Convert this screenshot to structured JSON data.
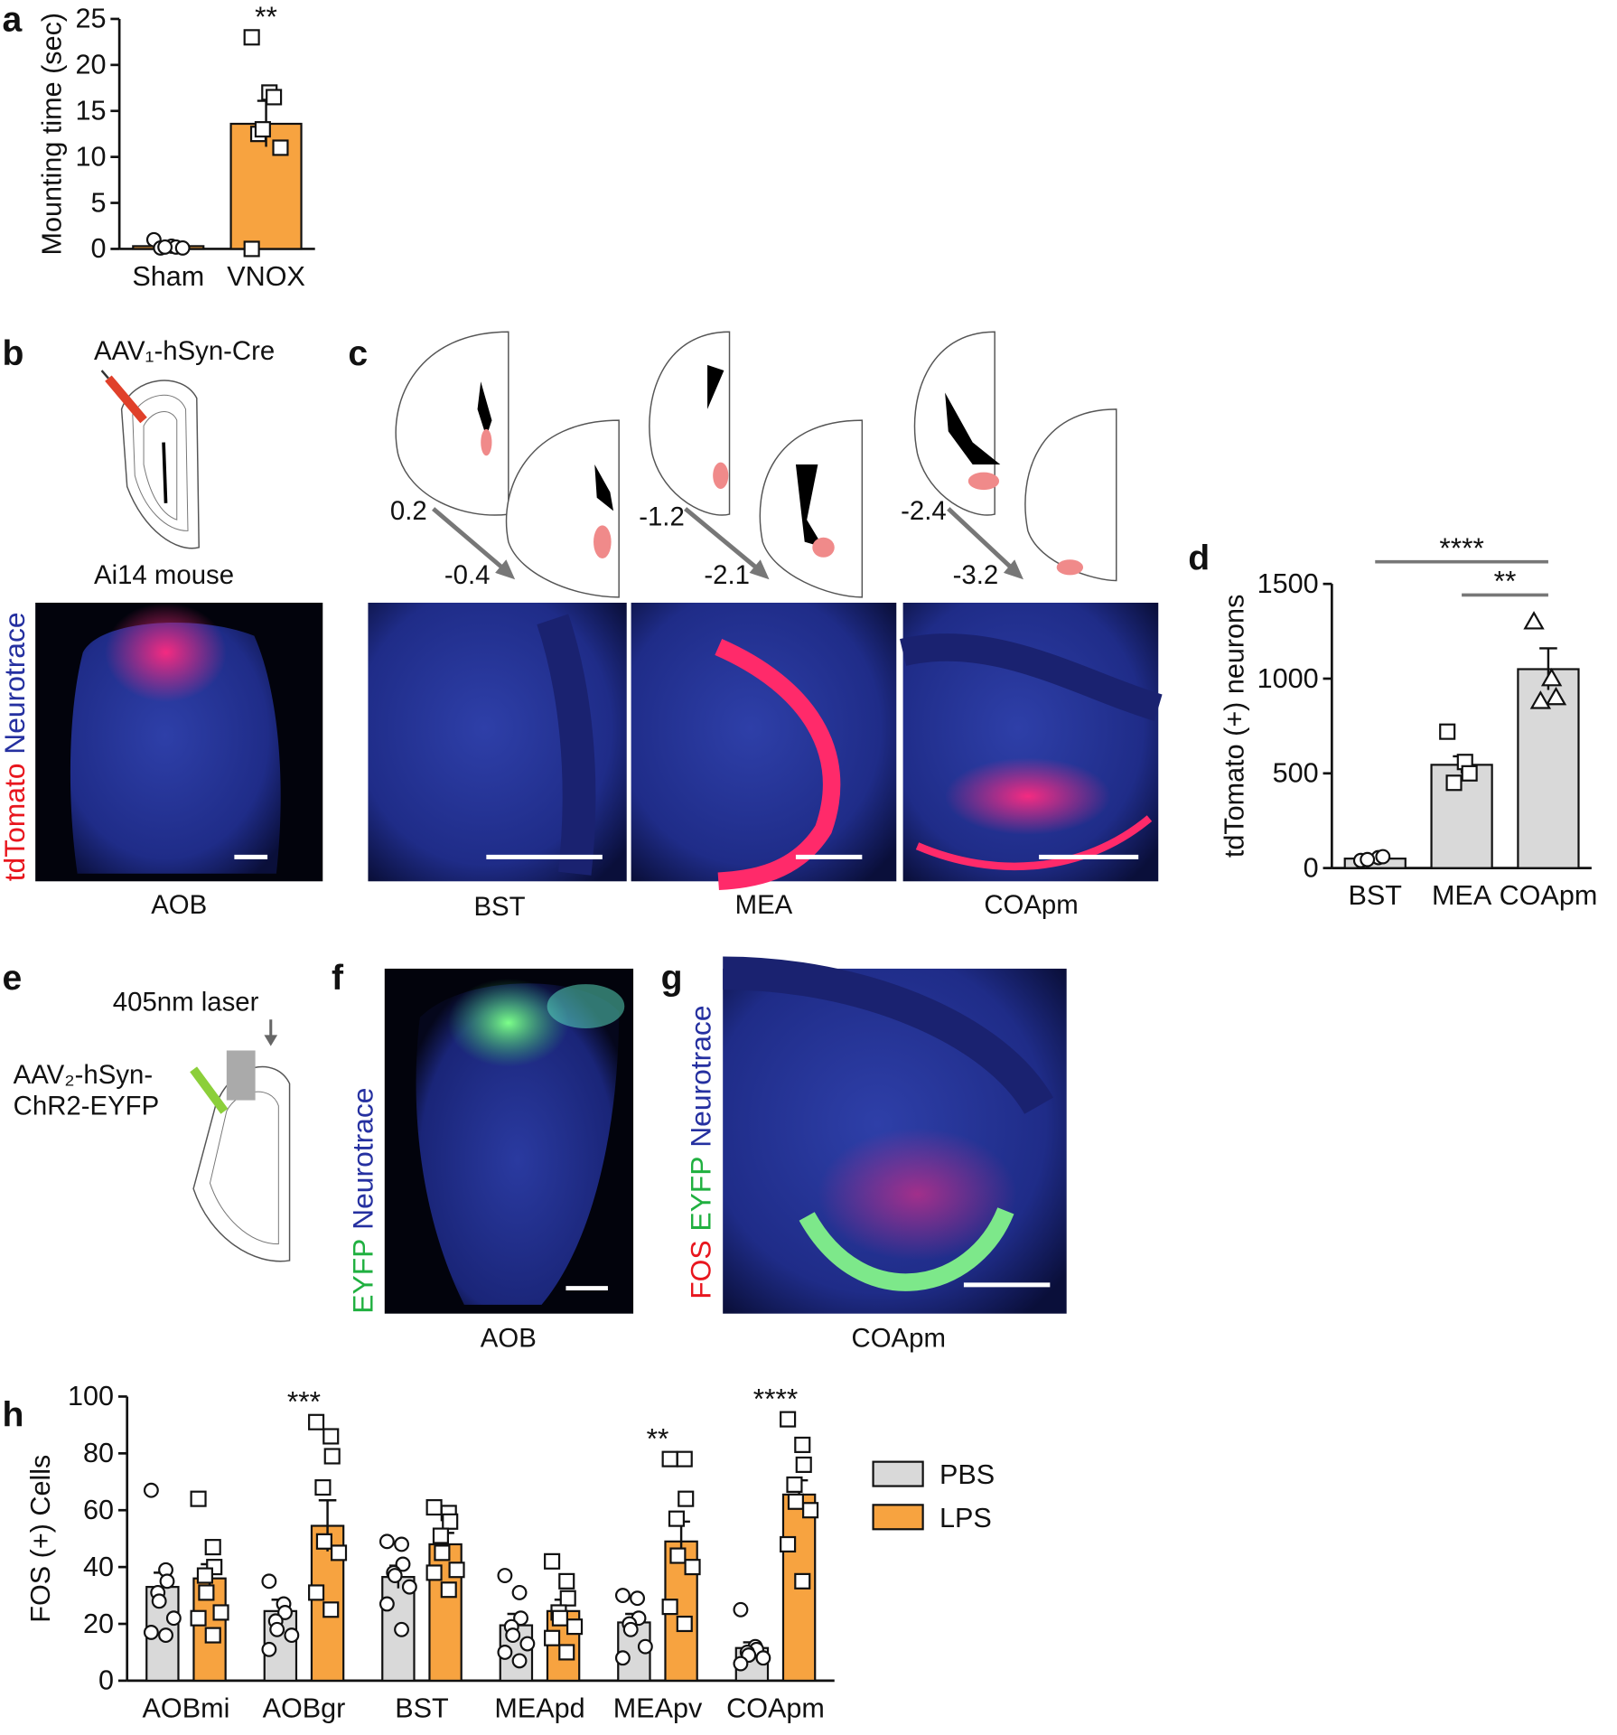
{
  "panels": [
    "a",
    "b",
    "c",
    "d",
    "e",
    "f",
    "g",
    "h"
  ],
  "b": {
    "vector": "AAV₁-hSyn-Cre",
    "mouse": "Ai14 mouse",
    "stain": [
      "tdTomato",
      "Neurotrace"
    ],
    "region": "AOB"
  },
  "c": {
    "levels": [
      [
        "0.2",
        "-0.4"
      ],
      [
        "-1.2",
        "-2.1"
      ],
      [
        "-2.4",
        "-3.2"
      ]
    ],
    "regions": [
      "BST",
      "MEA",
      "COApm"
    ]
  },
  "e": {
    "laser": "405nm laser",
    "vector": [
      "AAV₂-hSyn-",
      "ChR2-EYFP"
    ]
  },
  "f": {
    "stain": [
      "EYFP",
      "Neurotrace"
    ],
    "region": "AOB"
  },
  "g": {
    "stain": [
      "FOS",
      "EYFP",
      "Neurotrace"
    ],
    "region": "COApm"
  },
  "chart_data": [
    {
      "type": "bar",
      "y_label": "Mounting time (sec)",
      "categories": [
        "Sham",
        "VNOX"
      ],
      "values": [
        0.3,
        13.6
      ],
      "errors": [
        0.2,
        2.5
      ],
      "points": [
        [
          1,
          0.3,
          0.2,
          0.1,
          0.2,
          0.1
        ],
        [
          23,
          17,
          16.5,
          12.5,
          13,
          11,
          0
        ]
      ],
      "markers": [
        "circle",
        "square"
      ],
      "color": "#f7a340",
      "ylim": [
        0,
        25
      ],
      "yticks": [
        0,
        5,
        10,
        15,
        20,
        25
      ],
      "significance": [
        null,
        "**"
      ]
    },
    {
      "type": "bar",
      "y_label": "tdTomato (+) neurons",
      "categories": [
        "BST",
        "MEA",
        "COApm"
      ],
      "values": [
        50,
        545,
        1050
      ],
      "errors": [
        15,
        45,
        110
      ],
      "points": [
        [
          40,
          55,
          60,
          45
        ],
        [
          720,
          560,
          500,
          450
        ],
        [
          1300,
          1000,
          900,
          880
        ]
      ],
      "markers": [
        "circle",
        "square",
        "triangle"
      ],
      "color": "#d9d9d9",
      "ylim": [
        0,
        1500
      ],
      "yticks": [
        0,
        500,
        1000,
        1500
      ],
      "comparisons": [
        {
          "label": "****",
          "from": "BST",
          "to": "COApm"
        },
        {
          "label": "**",
          "from": "MEA",
          "to": "COApm"
        }
      ]
    },
    {
      "type": "grouped_bar",
      "y_label": "FOS (+) Cells",
      "categories": [
        "AOBmi",
        "AOBgr",
        "BST",
        "MEApd",
        "MEApv",
        "COApm"
      ],
      "series": [
        {
          "name": "PBS",
          "color": "#d9d9d9",
          "marker": "circle",
          "values": [
            33,
            24.5,
            36.5,
            19.5,
            20.5,
            11.5
          ],
          "errors": [
            5,
            4,
            4,
            4,
            3,
            2
          ],
          "points": [
            [
              67,
              39,
              35,
              31,
              28,
              22,
              17,
              16
            ],
            [
              35,
              27,
              24,
              21,
              18,
              16,
              11
            ],
            [
              49,
              48,
              41,
              38,
              37,
              33,
              27,
              18
            ],
            [
              37,
              31,
              22,
              19,
              16,
              13,
              10,
              7
            ],
            [
              30,
              29,
              22,
              20,
              18,
              12,
              8
            ],
            [
              25,
              12,
              11,
              10,
              9,
              8,
              6
            ]
          ]
        },
        {
          "name": "LPS",
          "color": "#f7a340",
          "marker": "square",
          "values": [
            36,
            54.5,
            48,
            24.5,
            49,
            65.5
          ],
          "errors": [
            5,
            9,
            4,
            4,
            7,
            5
          ],
          "points": [
            [
              64,
              47,
              40,
              37,
              31,
              24,
              22,
              16
            ],
            [
              91,
              86,
              79,
              68,
              49,
              45,
              31,
              25
            ],
            [
              61,
              59,
              56,
              51,
              45,
              39,
              38,
              32
            ],
            [
              42,
              35,
              29,
              24,
              22,
              19,
              15,
              10
            ],
            [
              78,
              78,
              64,
              57,
              44,
              40,
              26,
              20
            ],
            [
              92,
              83,
              76,
              69,
              63,
              60,
              48,
              35
            ]
          ]
        }
      ],
      "ylim": [
        0,
        100
      ],
      "yticks": [
        0,
        20,
        40,
        60,
        80,
        100
      ],
      "significance": [
        null,
        "***",
        null,
        null,
        "**",
        "****"
      ]
    }
  ]
}
